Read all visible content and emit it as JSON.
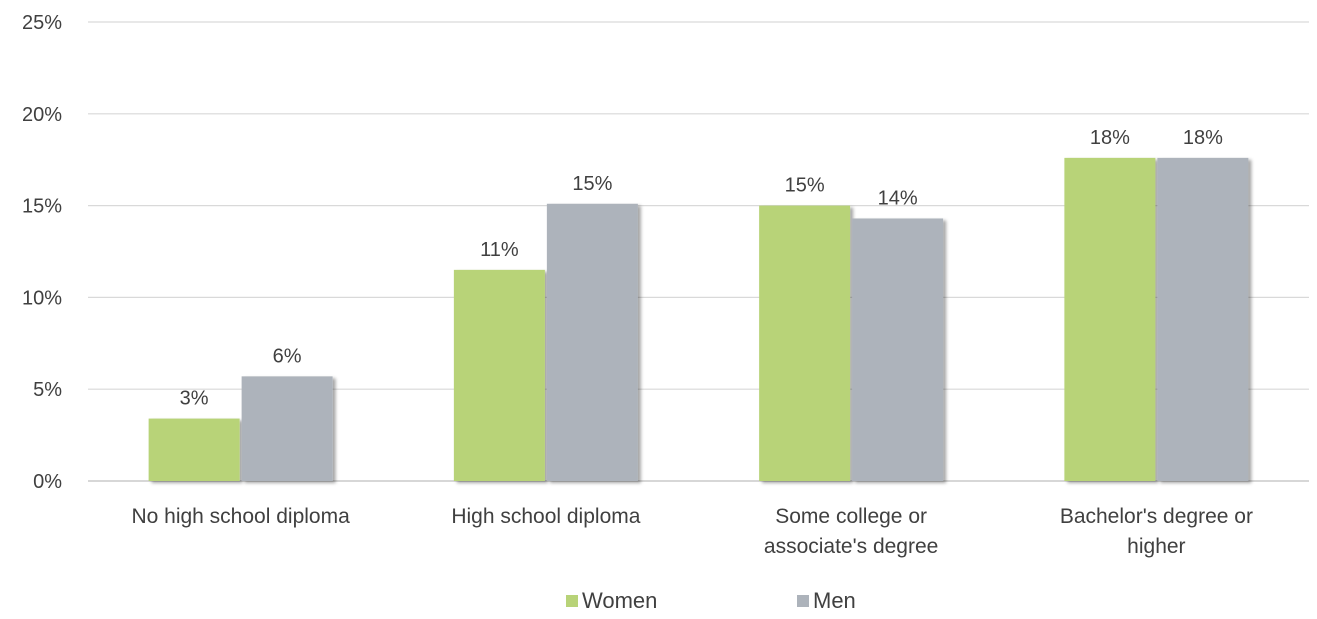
{
  "chart_data": {
    "type": "bar",
    "title": "",
    "xlabel": "",
    "ylabel": "",
    "categories": [
      [
        "No high school diploma"
      ],
      [
        "High school diploma"
      ],
      [
        "Some college or",
        "associate's degree"
      ],
      [
        "Bachelor's degree or",
        "higher"
      ]
    ],
    "series": [
      {
        "name": "Women",
        "color": "#b8d378",
        "values": [
          3.4,
          11.5,
          15.0,
          17.6
        ],
        "labels": [
          "3%",
          "11%",
          "15%",
          "18%"
        ]
      },
      {
        "name": "Men",
        "color": "#adb3bb",
        "values": [
          5.7,
          15.1,
          14.3,
          17.6
        ],
        "labels": [
          "6%",
          "15%",
          "14%",
          "18%"
        ]
      }
    ],
    "ylim": [
      0,
      25
    ],
    "yticks": [
      0,
      5,
      10,
      15,
      20,
      25
    ],
    "ytick_labels": [
      "0%",
      "5%",
      "10%",
      "15%",
      "20%",
      "25%"
    ],
    "grid": true,
    "gridline_color": "#d9d9d9",
    "legend_position": "bottom"
  }
}
